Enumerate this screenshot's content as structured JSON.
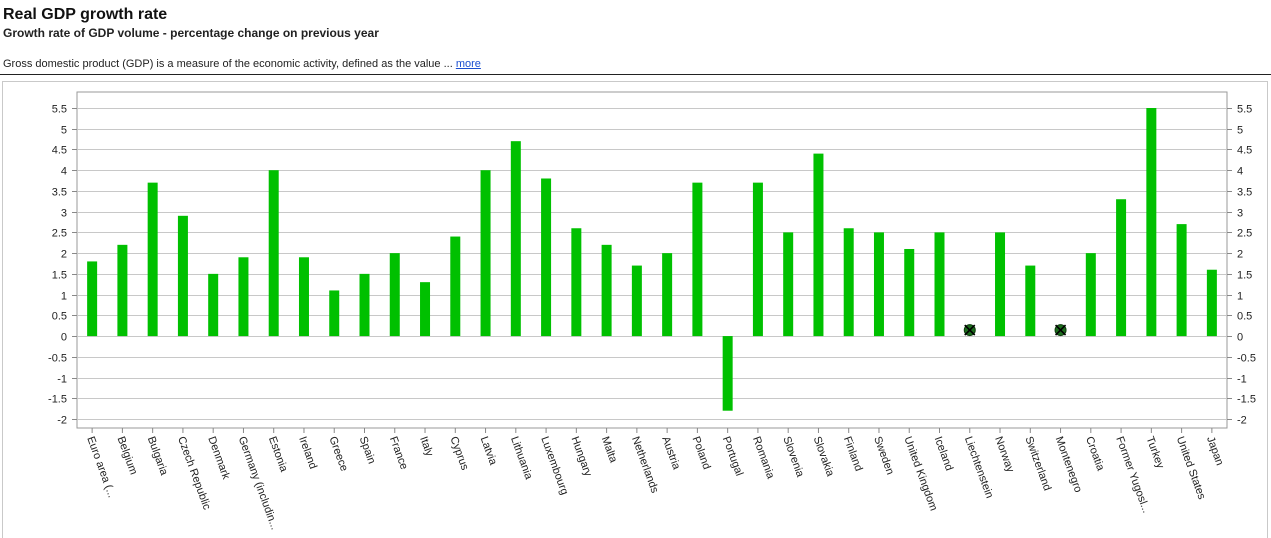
{
  "page": {
    "title": "Real GDP growth rate",
    "subtitle": "Growth rate of GDP volume - percentage change on previous year",
    "description": "Gross domestic product (GDP) is a measure of the economic activity, defined as the value ...",
    "more_link": "more"
  },
  "colors": {
    "bar": "#00c000",
    "grid": "#c8c8c8",
    "axis": "#888888",
    "missing_marker": "#1d6e1d"
  },
  "chart_data": {
    "type": "bar",
    "title": "",
    "xlabel": "",
    "ylabel": "",
    "ylim": [
      -2,
      5.5
    ],
    "y_ticks": [
      "5.5",
      "5",
      "4.5",
      "4",
      "3.5",
      "3",
      "2.5",
      "2",
      "1.5",
      "1",
      "0.5",
      "0",
      "-0.5",
      "-1",
      "-1.5",
      "-2"
    ],
    "grid": true,
    "axis_sides": "both",
    "categories": [
      "Euro area (...",
      "Belgium",
      "Bulgaria",
      "Czech Republic",
      "Denmark",
      "Germany (includin...",
      "Estonia",
      "Ireland",
      "Greece",
      "Spain",
      "France",
      "Italy",
      "Cyprus",
      "Latvia",
      "Lithuania",
      "Luxembourg",
      "Hungary",
      "Malta",
      "Netherlands",
      "Austria",
      "Poland",
      "Portugal",
      "Romania",
      "Slovenia",
      "Slovakia",
      "Finland",
      "Sweden",
      "United Kingdom",
      "Iceland",
      "Liechtenstein",
      "Norway",
      "Switzerland",
      "Montenegro",
      "Croatia",
      "Former Yugosl...",
      "Turkey",
      "United States",
      "Japan"
    ],
    "values": [
      1.8,
      2.2,
      3.7,
      2.9,
      1.5,
      1.9,
      4.0,
      1.9,
      1.1,
      1.5,
      2.0,
      1.3,
      2.4,
      4.0,
      4.7,
      3.8,
      2.6,
      2.2,
      1.7,
      2.0,
      3.7,
      -1.8,
      3.7,
      2.5,
      4.4,
      2.6,
      2.5,
      2.1,
      2.5,
      null,
      2.5,
      1.7,
      null,
      2.0,
      3.3,
      5.5,
      2.7,
      1.6
    ]
  }
}
